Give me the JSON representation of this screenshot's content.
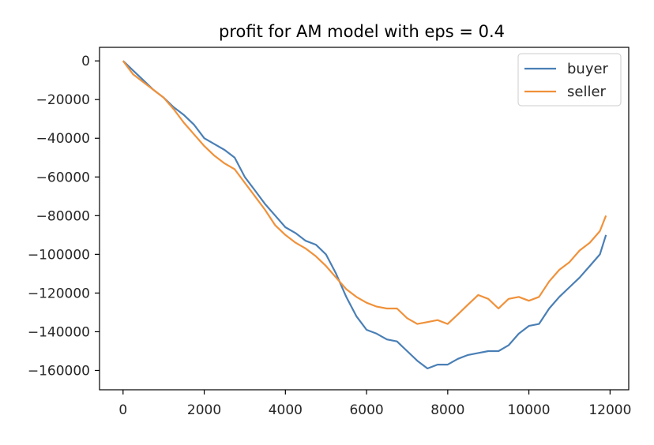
{
  "chart_data": {
    "type": "line",
    "title": "profit for AM model with eps = 0.4",
    "xlabel": "",
    "ylabel": "",
    "xlim": [
      -580,
      12460
    ],
    "ylim": [
      -170000,
      7000
    ],
    "x_ticks": [
      0,
      2000,
      4000,
      6000,
      8000,
      10000,
      12000
    ],
    "x_tick_labels": [
      "0",
      "2000",
      "4000",
      "6000",
      "8000",
      "10000",
      "12000"
    ],
    "y_ticks": [
      0,
      -20000,
      -40000,
      -60000,
      -80000,
      -100000,
      -120000,
      -140000,
      -160000
    ],
    "y_tick_labels": [
      "0",
      "−20000",
      "−40000",
      "−60000",
      "−80000",
      "−100000",
      "−120000",
      "−140000",
      "−160000"
    ],
    "grid": false,
    "legend_position": "top-right",
    "series": [
      {
        "name": "buyer",
        "color": "#4a7fb5",
        "x": [
          0,
          250,
          500,
          750,
          1000,
          1250,
          1500,
          1750,
          2000,
          2250,
          2500,
          2750,
          3000,
          3250,
          3500,
          3750,
          4000,
          4250,
          4500,
          4750,
          5000,
          5250,
          5500,
          5750,
          6000,
          6250,
          6500,
          6750,
          7000,
          7250,
          7500,
          7750,
          8000,
          8250,
          8500,
          8750,
          9000,
          9250,
          9500,
          9750,
          10000,
          10250,
          10500,
          10750,
          11000,
          11250,
          11500,
          11750,
          11900
        ],
        "y": [
          0,
          -5000,
          -10000,
          -15000,
          -19000,
          -24000,
          -28000,
          -33000,
          -40000,
          -43000,
          -46000,
          -50000,
          -60000,
          -67000,
          -74000,
          -80000,
          -86000,
          -89000,
          -93000,
          -95000,
          -100000,
          -110000,
          -122000,
          -132000,
          -139000,
          -141000,
          -144000,
          -145000,
          -150000,
          -155000,
          -159000,
          -157000,
          -157000,
          -154000,
          -152000,
          -151000,
          -150000,
          -150000,
          -147000,
          -141000,
          -137000,
          -136000,
          -128000,
          -122000,
          -117000,
          -112000,
          -106000,
          -100000,
          -90000
        ]
      },
      {
        "name": "seller",
        "color": "#f0913a",
        "x": [
          0,
          250,
          500,
          750,
          1000,
          1250,
          1500,
          1750,
          2000,
          2250,
          2500,
          2750,
          3000,
          3250,
          3500,
          3750,
          4000,
          4250,
          4500,
          4750,
          5000,
          5250,
          5500,
          5750,
          6000,
          6250,
          6500,
          6750,
          7000,
          7250,
          7500,
          7750,
          8000,
          8250,
          8500,
          8750,
          9000,
          9250,
          9500,
          9750,
          10000,
          10250,
          10500,
          10750,
          11000,
          11250,
          11500,
          11750,
          11900
        ],
        "y": [
          0,
          -7000,
          -11000,
          -15000,
          -19000,
          -25000,
          -32000,
          -38000,
          -44000,
          -49000,
          -53000,
          -56000,
          -63000,
          -70000,
          -77000,
          -85000,
          -90000,
          -94000,
          -97000,
          -101000,
          -106000,
          -112000,
          -118000,
          -122000,
          -125000,
          -127000,
          -128000,
          -128000,
          -133000,
          -136000,
          -135000,
          -134000,
          -136000,
          -131000,
          -126000,
          -121000,
          -123000,
          -128000,
          -123000,
          -122000,
          -124000,
          -122000,
          -114000,
          -108000,
          -104000,
          -98000,
          -94000,
          -88000,
          -80000
        ]
      }
    ]
  }
}
